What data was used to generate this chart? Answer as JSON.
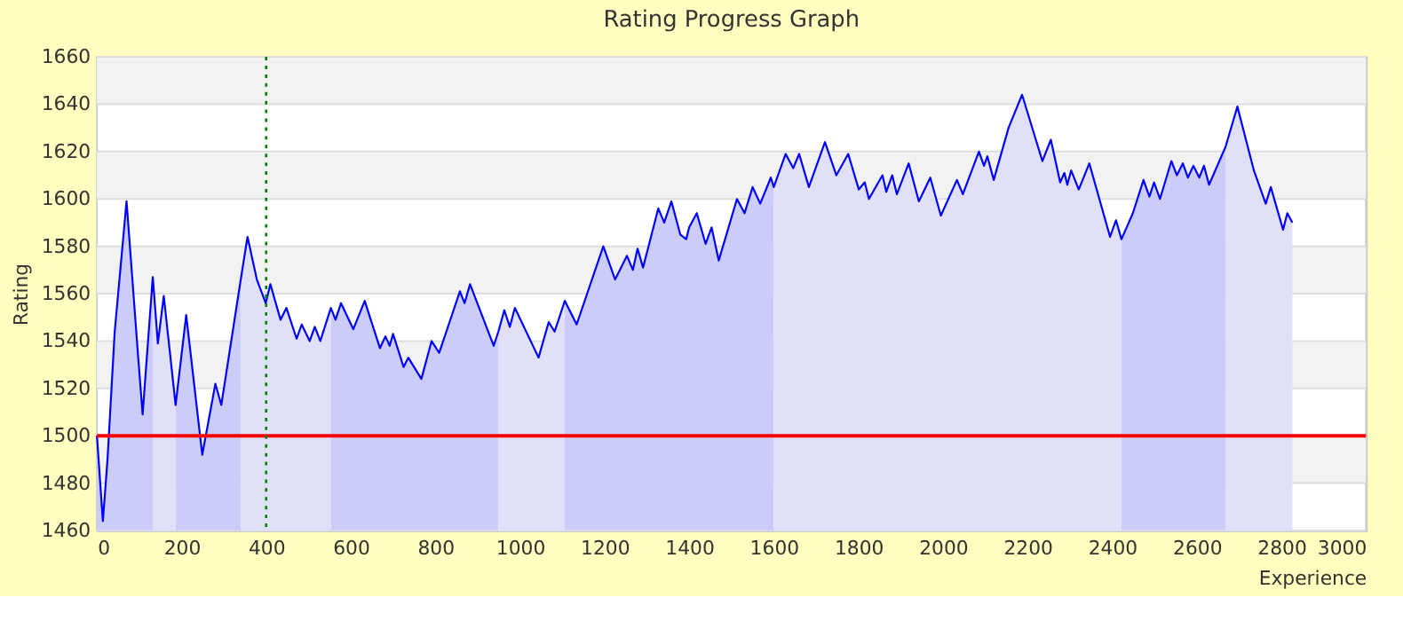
{
  "chart_data": {
    "type": "line",
    "title": "Rating Progress Graph",
    "xlabel": "Experience",
    "ylabel": "Rating",
    "xlim": [
      0,
      3000
    ],
    "xticks": [
      0,
      200,
      400,
      600,
      800,
      1000,
      1200,
      1400,
      1600,
      1800,
      2000,
      2200,
      2400,
      2600,
      2800,
      3000
    ],
    "ylim": [
      1460,
      1660
    ],
    "yticks": [
      1460,
      1480,
      1500,
      1520,
      1540,
      1560,
      1580,
      1600,
      1620,
      1640,
      1660
    ],
    "grid": "y",
    "line_style": "solid",
    "marker": "none",
    "series": [
      {
        "type": "area",
        "color": "#ccccf8",
        "x": [
          0,
          14,
          25,
          42,
          70,
          98,
          108,
          132
        ],
        "values": [
          1500,
          1464,
          1490,
          1544,
          1599,
          1532,
          1509,
          1567
        ]
      },
      {
        "type": "area",
        "color": "#e0e0f8",
        "x": [
          132,
          144,
          158,
          186
        ],
        "values": [
          1567,
          1539,
          1559,
          1513
        ]
      },
      {
        "type": "area",
        "color": "#ccccf8",
        "x": [
          186,
          211,
          249,
          280,
          294,
          340
        ],
        "values": [
          1513,
          1551,
          1492,
          1522,
          1513,
          1566
        ]
      },
      {
        "type": "area",
        "color": "#e0e0f8",
        "x": [
          340,
          356,
          378,
          399,
          410,
          434,
          448,
          472,
          484,
          503,
          515,
          528,
          553
        ],
        "values": [
          1566,
          1584,
          1566,
          1556,
          1564,
          1549,
          1554,
          1541,
          1547,
          1540,
          1546,
          1540,
          1554
        ]
      },
      {
        "type": "area",
        "color": "#ccccf8",
        "x": [
          553,
          564,
          577,
          606,
          633,
          669,
          682,
          692,
          700,
          725,
          736,
          767,
          791,
          809,
          858,
          869,
          882,
          938,
          949
        ],
        "values": [
          1554,
          1549,
          1556,
          1545,
          1557,
          1537,
          1542,
          1538,
          1543,
          1529,
          1533,
          1524,
          1540,
          1535,
          1561,
          1556,
          1564,
          1538,
          1544
        ]
      },
      {
        "type": "area",
        "color": "#e0e0f8",
        "x": [
          949,
          963,
          976,
          988,
          1044,
          1068,
          1082,
          1106
        ],
        "values": [
          1544,
          1553,
          1546,
          1554,
          1533,
          1548,
          1544,
          1557
        ]
      },
      {
        "type": "area",
        "color": "#ccccf8",
        "x": [
          1106,
          1134,
          1197,
          1225,
          1253,
          1267,
          1278,
          1291,
          1327,
          1341,
          1358,
          1379,
          1393,
          1400,
          1418,
          1439,
          1453,
          1470,
          1513,
          1531,
          1550,
          1568,
          1593,
          1600
        ],
        "values": [
          1557,
          1547,
          1580,
          1566,
          1576,
          1570,
          1579,
          1571,
          1596,
          1590,
          1599,
          1585,
          1583,
          1588,
          1594,
          1581,
          1588,
          1574,
          1600,
          1594,
          1605,
          1598,
          1609,
          1605
        ]
      },
      {
        "type": "area",
        "color": "#e0e0f8",
        "x": [
          1600,
          1628,
          1646,
          1660,
          1683,
          1721,
          1748,
          1776,
          1801,
          1815,
          1825,
          1857,
          1866,
          1880,
          1891,
          1919,
          1943,
          1970,
          1995,
          2033,
          2047,
          2085,
          2097,
          2105,
          2120,
          2155,
          2187,
          2235,
          2255,
          2277,
          2287,
          2294,
          2303,
          2321,
          2346,
          2395,
          2409,
          2422
        ],
        "values": [
          1605,
          1619,
          1613,
          1619,
          1605,
          1624,
          1610,
          1619,
          1604,
          1607,
          1600,
          1610,
          1603,
          1610,
          1602,
          1615,
          1599,
          1609,
          1593,
          1608,
          1602,
          1620,
          1614,
          1618,
          1608,
          1630,
          1644,
          1616,
          1625,
          1607,
          1611,
          1606,
          1612,
          1604,
          1615,
          1584,
          1591,
          1583
        ]
      },
      {
        "type": "area",
        "color": "#ccccf8",
        "x": [
          2422,
          2449,
          2474,
          2488,
          2499,
          2513,
          2540,
          2553,
          2567,
          2579,
          2592,
          2606,
          2617,
          2629,
          2668
        ],
        "values": [
          1583,
          1594,
          1608,
          1601,
          1607,
          1600,
          1616,
          1610,
          1615,
          1609,
          1614,
          1609,
          1614,
          1606,
          1622
        ]
      },
      {
        "type": "area",
        "color": "#e0e0f8",
        "x": [
          2668,
          2696,
          2735,
          2763,
          2775,
          2804,
          2814,
          2826
        ],
        "values": [
          1622,
          1639,
          1612,
          1598,
          1605,
          1587,
          1594,
          1590
        ]
      },
      {
        "type": "line",
        "color": "#0000ff",
        "x": [
          0,
          14,
          25,
          42,
          70,
          98,
          108,
          132,
          144,
          158,
          186,
          211,
          249,
          280,
          294,
          340,
          356,
          378,
          399,
          410,
          434,
          448,
          472,
          484,
          503,
          515,
          528,
          553,
          564,
          577,
          606,
          633,
          669,
          682,
          692,
          700,
          725,
          736,
          767,
          791,
          809,
          858,
          869,
          882,
          938,
          949,
          963,
          976,
          988,
          1044,
          1068,
          1082,
          1106,
          1134,
          1197,
          1225,
          1253,
          1267,
          1278,
          1291,
          1327,
          1341,
          1358,
          1379,
          1393,
          1400,
          1418,
          1439,
          1453,
          1470,
          1513,
          1531,
          1550,
          1568,
          1593,
          1600,
          1628,
          1646,
          1660,
          1683,
          1721,
          1748,
          1776,
          1801,
          1815,
          1825,
          1857,
          1866,
          1880,
          1891,
          1919,
          1943,
          1970,
          1995,
          2033,
          2047,
          2085,
          2097,
          2105,
          2120,
          2155,
          2187,
          2235,
          2255,
          2277,
          2287,
          2294,
          2303,
          2321,
          2346,
          2395,
          2409,
          2422,
          2449,
          2474,
          2488,
          2499,
          2513,
          2540,
          2553,
          2567,
          2579,
          2592,
          2606,
          2617,
          2629,
          2668,
          2696,
          2735,
          2763,
          2775,
          2804,
          2814,
          2826
        ],
        "values": [
          1500,
          1464,
          1490,
          1544,
          1599,
          1532,
          1509,
          1567,
          1539,
          1559,
          1513,
          1551,
          1492,
          1522,
          1513,
          1566,
          1584,
          1566,
          1556,
          1564,
          1549,
          1554,
          1541,
          1547,
          1540,
          1546,
          1540,
          1554,
          1549,
          1556,
          1545,
          1557,
          1537,
          1542,
          1538,
          1543,
          1529,
          1533,
          1524,
          1540,
          1535,
          1561,
          1556,
          1564,
          1538,
          1544,
          1553,
          1546,
          1554,
          1533,
          1548,
          1544,
          1557,
          1547,
          1580,
          1566,
          1576,
          1570,
          1579,
          1571,
          1596,
          1590,
          1599,
          1585,
          1583,
          1588,
          1594,
          1581,
          1588,
          1574,
          1600,
          1594,
          1605,
          1598,
          1609,
          1605,
          1619,
          1613,
          1619,
          1605,
          1624,
          1610,
          1619,
          1604,
          1607,
          1600,
          1610,
          1603,
          1610,
          1602,
          1615,
          1599,
          1609,
          1593,
          1608,
          1602,
          1620,
          1614,
          1618,
          1608,
          1630,
          1644,
          1616,
          1625,
          1607,
          1611,
          1606,
          1612,
          1604,
          1615,
          1584,
          1591,
          1583,
          1594,
          1608,
          1601,
          1607,
          1600,
          1616,
          1610,
          1615,
          1609,
          1614,
          1609,
          1614,
          1606,
          1622,
          1639,
          1612,
          1598,
          1605,
          1587,
          1594,
          1590
        ]
      }
    ],
    "ref_lines": [
      {
        "axis": "y",
        "value": 1500,
        "color": "#ff0000",
        "line_style": "solid"
      },
      {
        "axis": "x",
        "value": 400,
        "color": "#008000",
        "line_style": "dotted"
      }
    ],
    "bands": [
      {
        "axis": "y",
        "from": 1480,
        "to": 1500,
        "color": "#f2f2f2"
      },
      {
        "axis": "y",
        "from": 1520,
        "to": 1540,
        "color": "#f2f2f2"
      },
      {
        "axis": "y",
        "from": 1560,
        "to": 1580,
        "color": "#f2f2f2"
      },
      {
        "axis": "y",
        "from": 1600,
        "to": 1620,
        "color": "#f2f2f2"
      },
      {
        "axis": "y",
        "from": 1640,
        "to": 1660,
        "color": "#f2f2f2"
      }
    ]
  }
}
